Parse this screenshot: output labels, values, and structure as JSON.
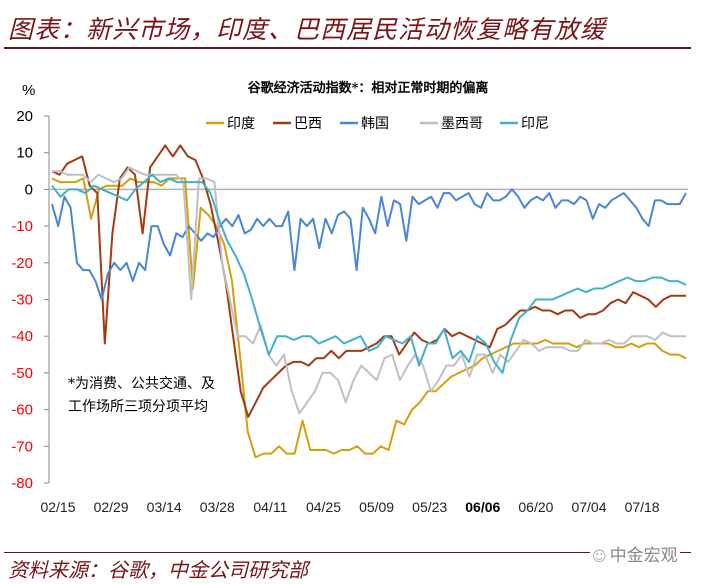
{
  "header": {
    "title": "图表：新兴市场，印度、巴西居民活动恢复略有放缓"
  },
  "footer": {
    "source": "资料来源：谷歌，中金公司研究部",
    "watermark": "中金宏观"
  },
  "chart_data": {
    "type": "line",
    "title": "谷歌经济活动指数*：相对正常时期的偏离",
    "ylabel": "%",
    "xlabel": "",
    "ylim": [
      -80,
      20
    ],
    "yticks": [
      20,
      10,
      0,
      -10,
      -20,
      -30,
      -40,
      -50,
      -60,
      -70,
      -80
    ],
    "ytick_negative_color": "#ff0000",
    "xticks": [
      "02/15",
      "02/29",
      "03/14",
      "03/28",
      "04/11",
      "04/25",
      "05/09",
      "05/23",
      "06/06",
      "06/20",
      "07/04",
      "07/18"
    ],
    "legend_position": "top",
    "grid": false,
    "note": [
      "*为消费、公共交通、及",
      "工作场所三项分项平均"
    ],
    "x_start": "02/15",
    "x_step_days": 2,
    "series": [
      {
        "name": "印度",
        "color": "#d4a00a",
        "values": [
          3,
          2,
          2,
          2,
          3,
          -8,
          0,
          1,
          1,
          1,
          3,
          2,
          2,
          2,
          1,
          3,
          3,
          3,
          -27,
          -5,
          -7,
          -10,
          -15,
          -25,
          -45,
          -66,
          -73,
          -72,
          -72,
          -70,
          -72,
          -72,
          -63,
          -71,
          -71,
          -71,
          -72,
          -71,
          -71,
          -70,
          -72,
          -72,
          -70,
          -71,
          -63,
          -64,
          -60,
          -58,
          -55,
          -55,
          -53,
          -51,
          -50,
          -49,
          -48,
          -46,
          -45,
          -44,
          -43,
          -42,
          -42,
          -42,
          -42,
          -41,
          -42,
          -42,
          -42,
          -43,
          -42,
          -42,
          -42,
          -42,
          -43,
          -43,
          -42,
          -43,
          -42,
          -42,
          -44,
          -45,
          -45,
          -46
        ]
      },
      {
        "name": "巴西",
        "color": "#a33a10",
        "values": [
          5,
          4,
          7,
          8,
          9,
          1,
          -1,
          -42,
          -12,
          3,
          6,
          4,
          -12,
          6,
          9,
          12,
          9,
          12,
          9,
          8,
          3,
          -4,
          -14,
          -25,
          -40,
          -55,
          -62,
          -58,
          -54,
          -52,
          -50,
          -48,
          -47,
          -47,
          -48,
          -46,
          -46,
          -44,
          -46,
          -44,
          -44,
          -44,
          -43,
          -42,
          -40,
          -40,
          -45,
          -42,
          -39,
          -41,
          -42,
          -41,
          -38,
          -40,
          -39,
          -40,
          -41,
          -42,
          -43,
          -38,
          -37,
          -35,
          -33,
          -33,
          -32,
          -33,
          -33,
          -34,
          -33,
          -33,
          -35,
          -34,
          -34,
          -33,
          -31,
          -30,
          -31,
          -28,
          -29,
          -30,
          -32,
          -30,
          -29,
          -29,
          -29
        ]
      },
      {
        "name": "韩国",
        "color": "#4a86d4",
        "values": [
          -4,
          -10,
          -2,
          -5,
          -20,
          -22,
          -22,
          -25,
          -30,
          -23,
          -20,
          -22,
          -20,
          -25,
          -20,
          -22,
          -10,
          -10,
          -15,
          -18,
          -12,
          -13,
          -10,
          -12,
          -14,
          -12,
          -13,
          -10,
          -8,
          -10,
          -7,
          -12,
          -11,
          -8,
          -10,
          -8,
          -10,
          -10,
          -6,
          -22,
          -8,
          -10,
          -8,
          -16,
          -8,
          -12,
          -7,
          -6,
          -8,
          -22,
          -5,
          -8,
          -12,
          -2,
          -10,
          -3,
          -4,
          -14,
          -2,
          -4,
          -3,
          -2,
          -5,
          -1,
          -1,
          -3,
          -2,
          -1,
          -4,
          -5,
          -1,
          -3,
          -3,
          -2,
          0,
          -2,
          -5,
          -3,
          -2,
          -3,
          -1,
          -5,
          -3,
          -3,
          -4,
          -2,
          -3,
          -8,
          -4,
          -5,
          -3,
          -2,
          -1,
          -3,
          -5,
          -8,
          -10,
          -3,
          -3,
          -4,
          -4,
          -4,
          -1
        ]
      },
      {
        "name": "墨西哥",
        "color": "#c0c0c0",
        "values": [
          5,
          5,
          4,
          4,
          4,
          2,
          4,
          3,
          2,
          3,
          6,
          5,
          4,
          4,
          4,
          4,
          4,
          2,
          -30,
          3,
          3,
          2,
          -20,
          -30,
          -40,
          -40,
          -42,
          -37,
          -45,
          -48,
          -45,
          -55,
          -61,
          -58,
          -55,
          -50,
          -50,
          -52,
          -58,
          -52,
          -48,
          -50,
          -52,
          -46,
          -45,
          -52,
          -48,
          -45,
          -48,
          -55,
          -52,
          -48,
          -48,
          -45,
          -51,
          -45,
          -45,
          -50,
          -45,
          -47,
          -44,
          -41,
          -42,
          -44,
          -43,
          -43,
          -43,
          -44,
          -44,
          -41,
          -42,
          -42,
          -41,
          -42,
          -42,
          -40,
          -40,
          -40,
          -41,
          -39,
          -40,
          -40,
          -40
        ]
      },
      {
        "name": "印尼",
        "color": "#43b0cb",
        "values": [
          1,
          -2,
          0,
          0,
          -1,
          1,
          0,
          -1,
          -2,
          -3,
          0,
          2,
          4,
          2,
          3,
          2,
          2,
          2,
          2,
          -1,
          -8,
          -14,
          -18,
          -23,
          -30,
          -38,
          -45,
          -40,
          -40,
          -41,
          -40,
          -40,
          -42,
          -41,
          -40,
          -42,
          -41,
          -40,
          -44,
          -43,
          -40,
          -41,
          -42,
          -40,
          -48,
          -42,
          -42,
          -38,
          -46,
          -44,
          -47,
          -40,
          -42,
          -47,
          -50,
          -41,
          -35,
          -33,
          -30,
          -30,
          -30,
          -29,
          -28,
          -27,
          -28,
          -27,
          -27,
          -26,
          -25,
          -24,
          -25,
          -25,
          -24,
          -24,
          -25,
          -25,
          -26
        ]
      }
    ]
  }
}
